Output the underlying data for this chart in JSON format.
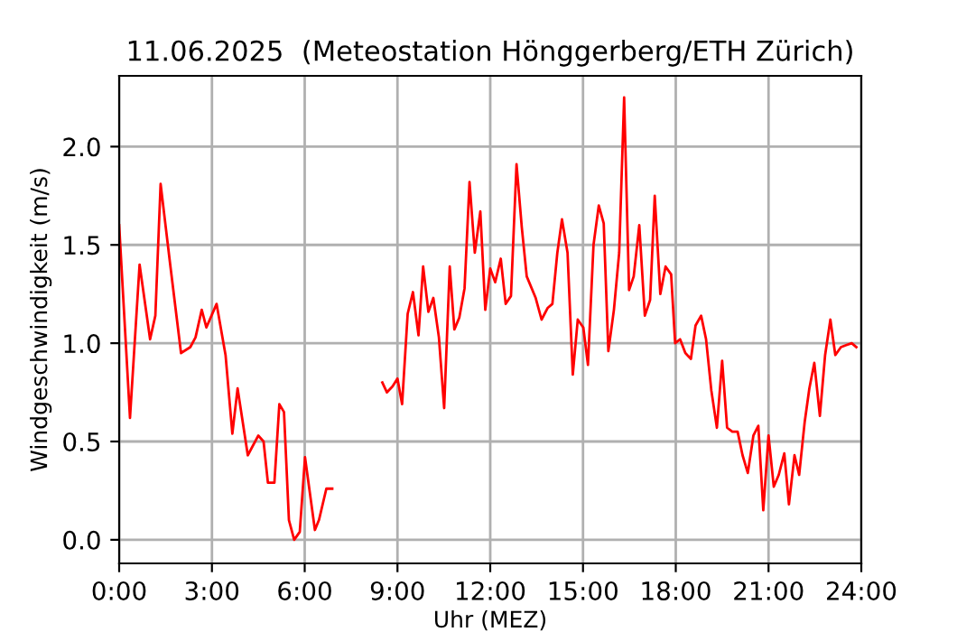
{
  "chart_data": {
    "type": "line",
    "title": "11.06.2025  (Meteostation Hönggerberg/ETH Zürich)",
    "xlabel": "Uhr (MEZ)",
    "ylabel": "Windgeschwindigkeit (m/s)",
    "x": [
      0,
      0.35,
      0.66,
      1.0,
      1.17,
      1.34,
      1.65,
      2.0,
      2.3,
      2.47,
      2.67,
      2.82,
      3.15,
      3.44,
      3.66,
      3.83,
      4.16,
      4.5,
      4.67,
      4.81,
      5.02,
      5.18,
      5.33,
      5.49,
      5.66,
      5.84,
      6.01,
      6.33,
      6.46,
      6.7,
      6.89,
      7.7,
      8.51,
      8.66,
      8.84,
      9.0,
      9.15,
      9.33,
      9.5,
      9.68,
      9.83,
      10.0,
      10.16,
      10.34,
      10.51,
      10.69,
      10.84,
      11.0,
      11.17,
      11.33,
      11.5,
      11.68,
      11.84,
      12.0,
      12.16,
      12.34,
      12.5,
      12.67,
      12.85,
      13.02,
      13.18,
      13.47,
      13.66,
      13.86,
      14.01,
      14.17,
      14.32,
      14.5,
      14.67,
      14.83,
      15.01,
      15.16,
      15.34,
      15.51,
      15.67,
      15.82,
      16.0,
      16.17,
      16.33,
      16.49,
      16.64,
      16.82,
      17.0,
      17.17,
      17.32,
      17.5,
      17.67,
      17.85,
      17.98,
      18.14,
      18.31,
      18.49,
      18.64,
      18.82,
      18.98,
      19.15,
      19.33,
      19.5,
      19.66,
      19.83,
      20.0,
      20.16,
      20.33,
      20.51,
      20.67,
      20.83,
      21.0,
      21.17,
      21.33,
      21.51,
      21.66,
      21.84,
      21.99,
      22.17,
      22.32,
      22.48,
      22.66,
      22.83,
      23.0,
      23.16,
      23.34,
      23.51,
      23.69,
      23.84
    ],
    "series": [
      {
        "color": "#ff0000",
        "values": [
          1.6,
          0.62,
          1.4,
          1.02,
          1.14,
          1.81,
          1.4,
          0.95,
          0.98,
          1.03,
          1.17,
          1.08,
          1.2,
          0.94,
          0.54,
          0.77,
          0.43,
          0.53,
          0.5,
          0.29,
          0.29,
          0.69,
          0.65,
          0.1,
          0.0,
          0.04,
          0.42,
          0.05,
          0.1,
          0.26,
          0.26,
          null,
          0.8,
          0.75,
          0.78,
          0.82,
          0.69,
          1.15,
          1.26,
          1.04,
          1.39,
          1.16,
          1.23,
          1.03,
          0.67,
          1.39,
          1.07,
          1.13,
          1.28,
          1.82,
          1.46,
          1.67,
          1.17,
          1.38,
          1.31,
          1.43,
          1.2,
          1.24,
          1.91,
          1.59,
          1.34,
          1.23,
          1.12,
          1.18,
          1.2,
          1.46,
          1.63,
          1.46,
          0.84,
          1.12,
          1.08,
          0.89,
          1.5,
          1.7,
          1.61,
          0.96,
          1.17,
          1.46,
          2.25,
          1.27,
          1.34,
          1.6,
          1.14,
          1.22,
          1.75,
          1.25,
          1.39,
          1.35,
          1.0,
          1.02,
          0.95,
          0.92,
          1.09,
          1.14,
          1.02,
          0.76,
          0.57,
          0.91,
          0.57,
          0.55,
          0.55,
          0.43,
          0.34,
          0.53,
          0.58,
          0.15,
          0.53,
          0.27,
          0.33,
          0.44,
          0.18,
          0.43,
          0.33,
          0.6,
          0.77,
          0.9,
          0.63,
          0.94,
          1.12,
          0.94,
          0.98,
          0.99,
          1.0,
          0.98
        ]
      }
    ],
    "xlim": [
      0,
      24
    ],
    "xticks": [
      {
        "value": 0,
        "label": "0:00"
      },
      {
        "value": 3,
        "label": "3:00"
      },
      {
        "value": 6,
        "label": "6:00"
      },
      {
        "value": 9,
        "label": "9:00"
      },
      {
        "value": 12,
        "label": "12:00"
      },
      {
        "value": 15,
        "label": "15:00"
      },
      {
        "value": 18,
        "label": "18:00"
      },
      {
        "value": 21,
        "label": "21:00"
      },
      {
        "value": 24,
        "label": "24:00"
      }
    ],
    "ylim": [
      -0.12,
      2.36
    ],
    "yticks": [
      {
        "value": 0,
        "label": "0.0"
      },
      {
        "value": 0.5,
        "label": "0.5"
      },
      {
        "value": 1.0,
        "label": "1.0"
      },
      {
        "value": 1.5,
        "label": "1.5"
      },
      {
        "value": 2.0,
        "label": "2.0"
      }
    ],
    "grid": true
  }
}
